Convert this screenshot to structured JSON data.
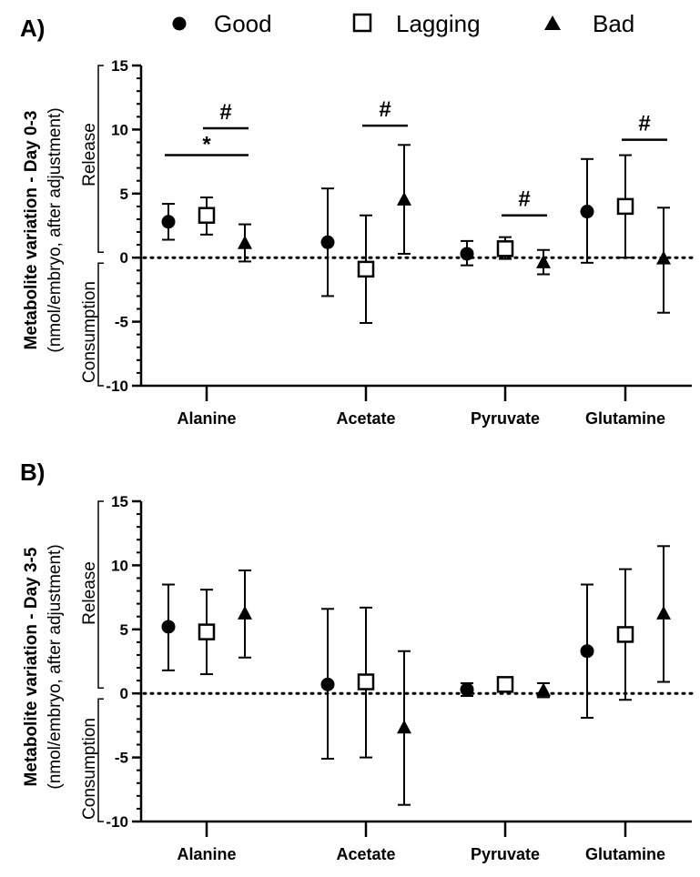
{
  "legend": [
    {
      "name": "Good",
      "marker": "circle"
    },
    {
      "name": "Lagging",
      "marker": "open-square"
    },
    {
      "name": "Bad",
      "marker": "triangle"
    }
  ],
  "chart_data": [
    {
      "type": "scatter",
      "panel_label": "A)",
      "ylabel": "Metabolite variation - Day 0-3",
      "ylabel_sub": "(nmol/embryo, after adjustment)",
      "region_labels": {
        "upper": "Release",
        "lower": "Consumption"
      },
      "ylim": [
        -10,
        15
      ],
      "yticks": [
        -10,
        -5,
        0,
        5,
        10,
        15
      ],
      "categories": [
        "Alanine",
        "Acetate",
        "Pyruvate",
        "Glutamine"
      ],
      "reference_line": 0,
      "series": [
        {
          "name": "Good",
          "values": [
            2.8,
            1.2,
            0.3,
            3.6
          ],
          "err_low": [
            1.4,
            -3.0,
            -0.6,
            -0.4
          ],
          "err_high": [
            4.2,
            5.4,
            1.3,
            7.7
          ]
        },
        {
          "name": "Lagging",
          "values": [
            3.3,
            -0.9,
            0.7,
            4.0
          ],
          "err_low": [
            1.8,
            -5.1,
            -0.1,
            0.0
          ],
          "err_high": [
            4.7,
            3.3,
            1.6,
            8.0
          ]
        },
        {
          "name": "Bad",
          "values": [
            1.1,
            4.5,
            -0.4,
            -0.1
          ],
          "err_low": [
            -0.3,
            0.3,
            -1.3,
            -4.3
          ],
          "err_high": [
            2.6,
            8.8,
            0.6,
            3.9
          ]
        }
      ],
      "significance": [
        {
          "label": "*",
          "category": "Alanine",
          "from": "Good",
          "to": "Bad",
          "y": 8.0
        },
        {
          "label": "#",
          "category": "Alanine",
          "from": "Lagging",
          "to": "Bad",
          "y": 10.1
        },
        {
          "label": "#",
          "category": "Acetate",
          "from": "Lagging",
          "to": "Bad",
          "y": 10.3
        },
        {
          "label": "#",
          "category": "Pyruvate",
          "from": "Lagging",
          "to": "Bad",
          "y": 3.3
        },
        {
          "label": "#",
          "category": "Glutamine",
          "from": "Lagging",
          "to": "Bad",
          "y": 9.2
        }
      ]
    },
    {
      "type": "scatter",
      "panel_label": "B)",
      "ylabel": "Metabolite variation - Day 3-5",
      "ylabel_sub": "(nmol/embryo, after adjustment)",
      "region_labels": {
        "upper": "Release",
        "lower": "Consumption"
      },
      "ylim": [
        -10,
        15
      ],
      "yticks": [
        -10,
        -5,
        0,
        5,
        10,
        15
      ],
      "categories": [
        "Alanine",
        "Acetate",
        "Pyruvate",
        "Glutamine"
      ],
      "reference_line": 0,
      "series": [
        {
          "name": "Good",
          "values": [
            5.2,
            0.7,
            0.3,
            3.3
          ],
          "err_low": [
            1.8,
            -5.1,
            -0.2,
            -1.9
          ],
          "err_high": [
            8.5,
            6.6,
            0.8,
            8.5
          ]
        },
        {
          "name": "Lagging",
          "values": [
            4.8,
            0.9,
            0.7,
            4.6
          ],
          "err_low": [
            1.5,
            -5.0,
            0.2,
            -0.5
          ],
          "err_high": [
            8.1,
            6.7,
            1.0,
            9.7
          ]
        },
        {
          "name": "Bad",
          "values": [
            6.2,
            -2.7,
            0.2,
            6.2
          ],
          "err_low": [
            2.8,
            -8.7,
            -0.3,
            0.9
          ],
          "err_high": [
            9.6,
            3.3,
            0.8,
            11.5
          ]
        }
      ],
      "significance": []
    }
  ]
}
